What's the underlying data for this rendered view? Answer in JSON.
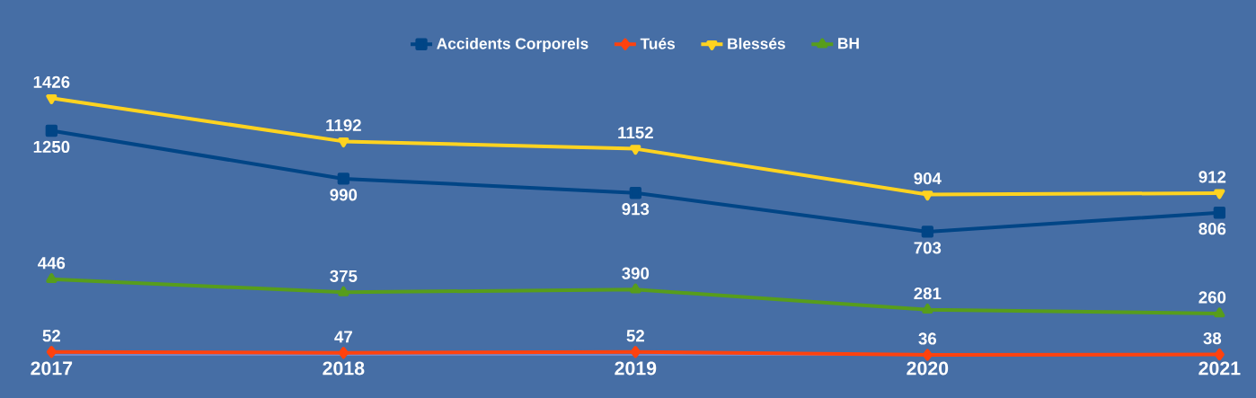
{
  "chart_data": {
    "type": "line",
    "categories": [
      "2017",
      "2018",
      "2019",
      "2020",
      "2021"
    ],
    "series": [
      {
        "name": "Accidents Corporels",
        "color": "#004586",
        "marker": "square",
        "values": [
          1250,
          990,
          913,
          703,
          806
        ]
      },
      {
        "name": "Tués",
        "color": "#ff420e",
        "marker": "diamond",
        "values": [
          52,
          47,
          52,
          36,
          38
        ]
      },
      {
        "name": "Blessés",
        "color": "#ffd320",
        "marker": "triangle",
        "values": [
          1426,
          1192,
          1152,
          904,
          912
        ]
      },
      {
        "name": "BH",
        "color": "#579d1c",
        "marker": "triangle",
        "values": [
          446,
          375,
          390,
          281,
          260
        ]
      }
    ],
    "data_labels": true,
    "legend": "top",
    "grid": false,
    "line_style": "solid"
  }
}
